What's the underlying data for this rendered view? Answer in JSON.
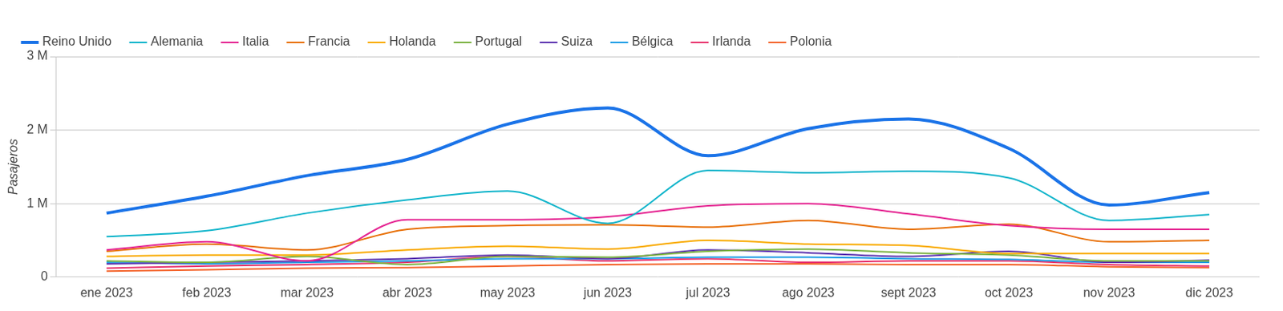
{
  "chart_data": {
    "type": "line",
    "y_label": "Pasajeros",
    "categories": [
      "ene 2023",
      "feb 2023",
      "mar 2023",
      "abr 2023",
      "may 2023",
      "jun 2023",
      "jul 2023",
      "ago 2023",
      "sept 2023",
      "oct 2023",
      "nov 2023",
      "dic 2023"
    ],
    "series": [
      {
        "name": "Reino Unido",
        "color": "#1a73e8",
        "values": [
          870000,
          1100000,
          1380000,
          1600000,
          2080000,
          2300000,
          1650000,
          2020000,
          2150000,
          1750000,
          980000,
          1150000
        ]
      },
      {
        "name": "Alemania",
        "color": "#12b5cb",
        "values": [
          550000,
          630000,
          870000,
          1050000,
          1170000,
          730000,
          1450000,
          1420000,
          1440000,
          1350000,
          770000,
          850000
        ]
      },
      {
        "name": "Italia",
        "color": "#e52592",
        "values": [
          370000,
          480000,
          220000,
          780000,
          780000,
          820000,
          970000,
          1000000,
          860000,
          700000,
          650000,
          650000
        ]
      },
      {
        "name": "Francia",
        "color": "#e8710a",
        "values": [
          350000,
          450000,
          370000,
          650000,
          700000,
          710000,
          680000,
          770000,
          650000,
          720000,
          480000,
          500000
        ]
      },
      {
        "name": "Holanda",
        "color": "#f9ab00",
        "values": [
          280000,
          300000,
          300000,
          370000,
          420000,
          380000,
          500000,
          450000,
          430000,
          320000,
          320000,
          320000
        ]
      },
      {
        "name": "Portugal",
        "color": "#7cb342",
        "values": [
          220000,
          200000,
          280000,
          170000,
          280000,
          270000,
          350000,
          380000,
          330000,
          300000,
          220000,
          220000
        ]
      },
      {
        "name": "Suiza",
        "color": "#5e35b1",
        "values": [
          180000,
          200000,
          220000,
          250000,
          300000,
          250000,
          370000,
          330000,
          280000,
          350000,
          200000,
          230000
        ]
      },
      {
        "name": "Bélgica",
        "color": "#1e9de6",
        "values": [
          200000,
          180000,
          200000,
          220000,
          250000,
          250000,
          270000,
          270000,
          250000,
          240000,
          200000,
          200000
        ]
      },
      {
        "name": "Irlanda",
        "color": "#e8336d",
        "values": [
          120000,
          150000,
          170000,
          200000,
          280000,
          220000,
          250000,
          200000,
          220000,
          220000,
          170000,
          150000
        ]
      },
      {
        "name": "Polonia",
        "color": "#f4642b",
        "values": [
          80000,
          100000,
          120000,
          130000,
          150000,
          170000,
          180000,
          180000,
          170000,
          170000,
          140000,
          130000
        ]
      }
    ],
    "ylim": [
      0,
      3000000
    ],
    "yticks": [
      0,
      {
        "value": 1000000,
        "label": "1 M"
      },
      {
        "value": 2000000,
        "label": "2 M"
      },
      {
        "value": 3000000,
        "label": "3 M"
      }
    ],
    "grid": true,
    "legend": "top-left"
  }
}
